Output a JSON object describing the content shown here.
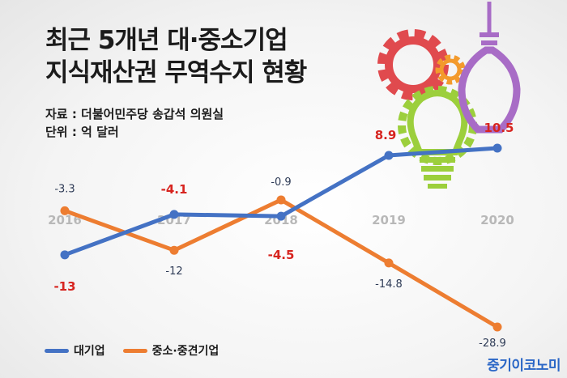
{
  "title_lines": [
    "최근 5개년 대·중소기업",
    "지식재산권 무역수지 현황"
  ],
  "source": "자료 : 더불어민주당 송갑석 의원실",
  "unit": "단위 : 억 달러",
  "brand": "중기이코노미",
  "colors": {
    "large": "#4472c4",
    "sme": "#ed7d31",
    "label_navy": "#2d3a55",
    "label_red": "#d7241f",
    "gear_red": "#e04a4e",
    "gear_orange": "#f39a2c",
    "bulb_green": "#9ccf3c",
    "bulb_purple": "#a86cc6"
  },
  "chart_data": {
    "type": "line",
    "categories": [
      "2016",
      "2017",
      "2018",
      "2019",
      "2020"
    ],
    "series": [
      {
        "name": "대기업",
        "values": [
          -13,
          -4.1,
          -4.5,
          8.9,
          10.5
        ],
        "labels": [
          "-13",
          "-4.1",
          "-4.5",
          "8.9",
          "10.5"
        ],
        "label_styles": [
          "red",
          "red",
          "red",
          "red",
          "red"
        ]
      },
      {
        "name": "중소·중견기업",
        "values": [
          -3.3,
          -12,
          -0.9,
          -14.8,
          -28.9
        ],
        "labels": [
          "-3.3",
          "-12",
          "-0.9",
          "-14.8",
          "-28.9"
        ],
        "label_styles": [
          "navy",
          "navy",
          "navy",
          "navy",
          "navy"
        ]
      }
    ],
    "ylim": [
      -30,
      12
    ],
    "grid": false,
    "legend": "bottom-left"
  }
}
